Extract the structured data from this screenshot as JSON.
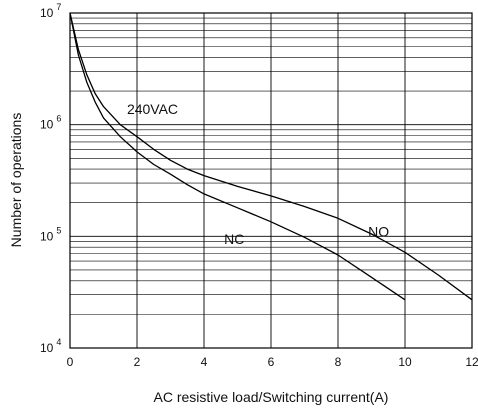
{
  "chart_data": {
    "type": "line",
    "title": "",
    "xlabel": "AC resistive load/Switching current(A)",
    "ylabel": "Number of operations",
    "xlim": [
      0,
      12
    ],
    "ylim": [
      10000,
      10000000
    ],
    "yscale": "log",
    "x_ticks": [
      "0",
      "2",
      "4",
      "6",
      "8",
      "10",
      "12"
    ],
    "y_ticks": [
      {
        "base": "10",
        "exp": "4",
        "value": 10000
      },
      {
        "base": "10",
        "exp": "5",
        "value": 100000
      },
      {
        "base": "10",
        "exp": "6",
        "value": 1000000
      },
      {
        "base": "10",
        "exp": "7",
        "value": 10000000
      }
    ],
    "grid": true,
    "series": [
      {
        "name": "NO",
        "x": [
          0,
          0.25,
          0.5,
          0.75,
          1,
          1.5,
          2,
          2.5,
          3,
          3.5,
          4,
          5,
          6,
          7,
          8,
          9,
          10,
          11,
          12
        ],
        "y": [
          10000000,
          4700000,
          2800000,
          1900000,
          1450000,
          1000000,
          780000,
          600000,
          480000,
          400000,
          350000,
          280000,
          230000,
          185000,
          145000,
          105000,
          72000,
          45000,
          27000
        ]
      },
      {
        "name": "NC",
        "x": [
          0,
          0.25,
          0.5,
          0.75,
          1,
          1.5,
          2,
          2.5,
          3,
          3.5,
          4,
          5,
          6,
          7,
          8,
          9,
          10
        ],
        "y": [
          10000000,
          4200000,
          2400000,
          1600000,
          1150000,
          780000,
          570000,
          440000,
          360000,
          290000,
          240000,
          180000,
          135000,
          98000,
          68000,
          43000,
          27000
        ]
      }
    ],
    "annotations": [
      {
        "text": "240VAC",
        "x": 1.7,
        "y": 1250000
      },
      {
        "text": "NC",
        "x": 4.6,
        "y": 85000
      },
      {
        "text": "NO",
        "x": 8.9,
        "y": 100000
      }
    ]
  }
}
